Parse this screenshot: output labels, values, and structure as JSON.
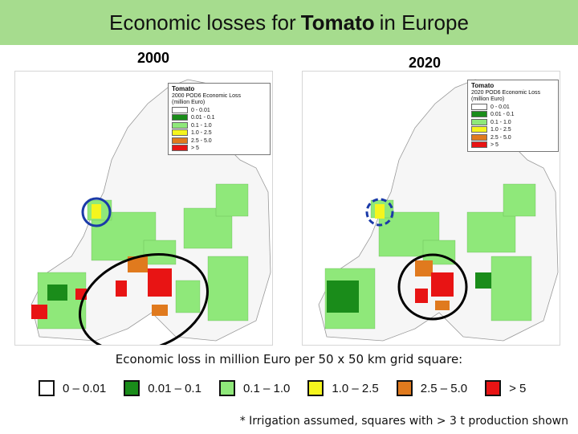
{
  "title": {
    "prefix": "Economic losses for",
    "crop": "Tomato",
    "suffix": "in Europe"
  },
  "maps": [
    {
      "year": "2000",
      "inset": {
        "title": "Tomato",
        "line1": "2000 POD6 Economic Loss",
        "line2": "(million Euro)"
      }
    },
    {
      "year": "2020",
      "inset": {
        "title": "Tomato",
        "line1": "2020 POD6 Economic Loss",
        "line2": "(million Euro)"
      }
    }
  ],
  "inset_classes": [
    "0 - 0.01",
    "0.01 - 0.1",
    "0.1 - 1.0",
    "1.0 - 2.5",
    "2.5 - 5.0",
    "> 5"
  ],
  "caption": "Economic loss in million Euro per 50 x 50 km grid square:",
  "legend": [
    {
      "label": "0 – 0.01",
      "color": "#ffffff"
    },
    {
      "label": "0.01 – 0.1",
      "color": "#1a8c1a"
    },
    {
      "label": "0.1 – 1.0",
      "color": "#8fe87a"
    },
    {
      "label": "1.0 – 2.5",
      "color": "#f5f51e"
    },
    {
      "label": "2.5 – 5.0",
      "color": "#e07a1e"
    },
    {
      "label": "> 5",
      "color": "#e81414"
    }
  ],
  "footnote": "* Irrigation assumed, squares with > 3 t production shown",
  "colors": {
    "title_bar": "#a6dc8e",
    "circle_blue": "#1a3aa8",
    "circle_black": "#000000"
  }
}
